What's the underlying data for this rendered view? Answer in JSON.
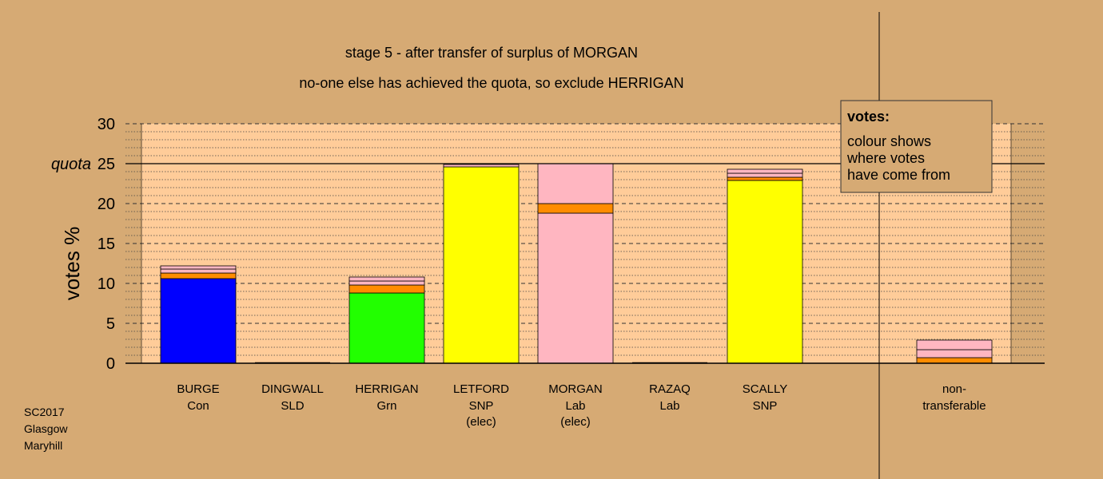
{
  "chart_data": {
    "type": "bar",
    "title": "stage 5 - after transfer of surplus of MORGAN",
    "subtitle": "no-one else has achieved the quota, so exclude HERRIGAN",
    "ylabel": "votes %",
    "ylim": [
      0,
      30
    ],
    "yticks": [
      0,
      5,
      10,
      15,
      20,
      25,
      30
    ],
    "quota": {
      "value": 25,
      "label": "quota"
    },
    "grid": true,
    "categories": [
      {
        "name": "BURGE",
        "party": "Con",
        "note": ""
      },
      {
        "name": "DINGWALL",
        "party": "SLD",
        "note": ""
      },
      {
        "name": "HERRIGAN",
        "party": "Grn",
        "note": ""
      },
      {
        "name": "LETFORD",
        "party": "SNP",
        "note": "(elec)"
      },
      {
        "name": "MORGAN",
        "party": "Lab",
        "note": "(elec)"
      },
      {
        "name": "RAZAQ",
        "party": "Lab",
        "note": ""
      },
      {
        "name": "SCALLY",
        "party": "SNP",
        "note": ""
      },
      {
        "name": "non-",
        "party": "transferable",
        "note": ""
      }
    ],
    "bars": [
      {
        "segments": [
          {
            "value": 10.6,
            "color": "#0000FF"
          },
          {
            "value": 0.7,
            "color": "#FF8C00"
          },
          {
            "value": 0.5,
            "color": "#FFB6C1"
          },
          {
            "value": 0.4,
            "color": "#FFB6C1"
          }
        ]
      },
      {
        "segments": []
      },
      {
        "segments": [
          {
            "value": 8.8,
            "color": "#22FF00"
          },
          {
            "value": 1.0,
            "color": "#FF8C00"
          },
          {
            "value": 0.5,
            "color": "#FFB6C1"
          },
          {
            "value": 0.5,
            "color": "#FFB6C1"
          }
        ]
      },
      {
        "segments": [
          {
            "value": 24.6,
            "color": "#FFFF00"
          },
          {
            "value": 0.3,
            "color": "#FFB6C1"
          }
        ]
      },
      {
        "segments": [
          {
            "value": 18.8,
            "color": "#FFB6C1"
          },
          {
            "value": 1.2,
            "color": "#FF8C00"
          },
          {
            "value": 5.0,
            "color": "#FFB6C1"
          }
        ]
      },
      {
        "segments": []
      },
      {
        "segments": [
          {
            "value": 22.9,
            "color": "#FFFF00"
          },
          {
            "value": 0.4,
            "color": "#FF8C00"
          },
          {
            "value": 0.5,
            "color": "#FFB6C1"
          },
          {
            "value": 0.5,
            "color": "#FFB6C1"
          }
        ]
      },
      {
        "segments": [
          {
            "value": 0.7,
            "color": "#FF8C00"
          },
          {
            "value": 1.0,
            "color": "#FFB6C1"
          },
          {
            "value": 1.2,
            "color": "#FFB6C1"
          }
        ]
      }
    ],
    "legend": {
      "title": "votes:",
      "lines": [
        "colour shows",
        "where votes",
        "have come from"
      ],
      "placement": "top-right"
    },
    "footer": [
      "SC2017",
      "Glasgow",
      "Maryhill"
    ]
  }
}
